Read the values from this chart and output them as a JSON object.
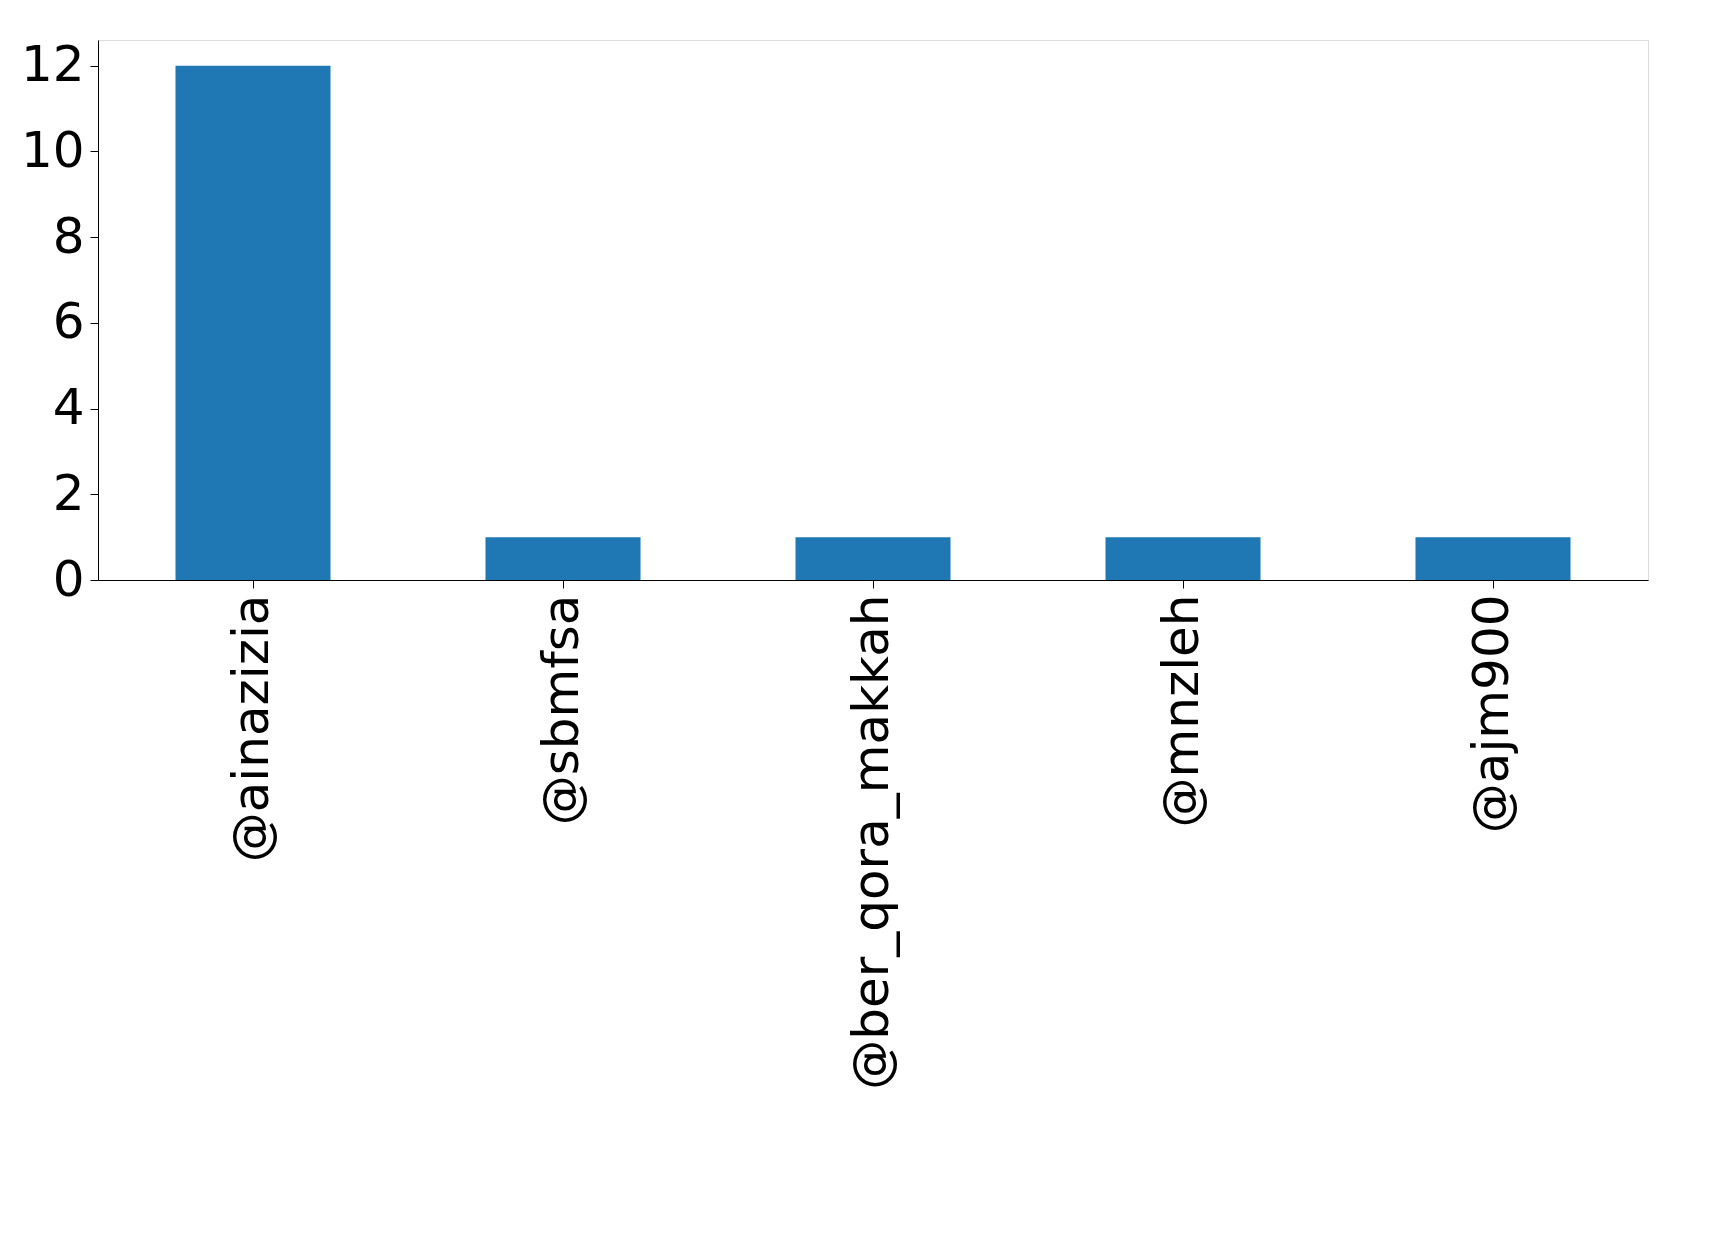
{
  "chart_data": {
    "type": "bar",
    "categories": [
      "@ainazizia",
      "@sbmfsa",
      "@ber_qora_makkah",
      "@mnzleh",
      "@ajm900"
    ],
    "values": [
      12,
      1,
      1,
      1,
      1
    ],
    "color": "#1f77b4",
    "ylim": [
      0,
      12.6
    ],
    "yticks": [
      0,
      2,
      4,
      6,
      8,
      10,
      12
    ],
    "grid": false
  }
}
